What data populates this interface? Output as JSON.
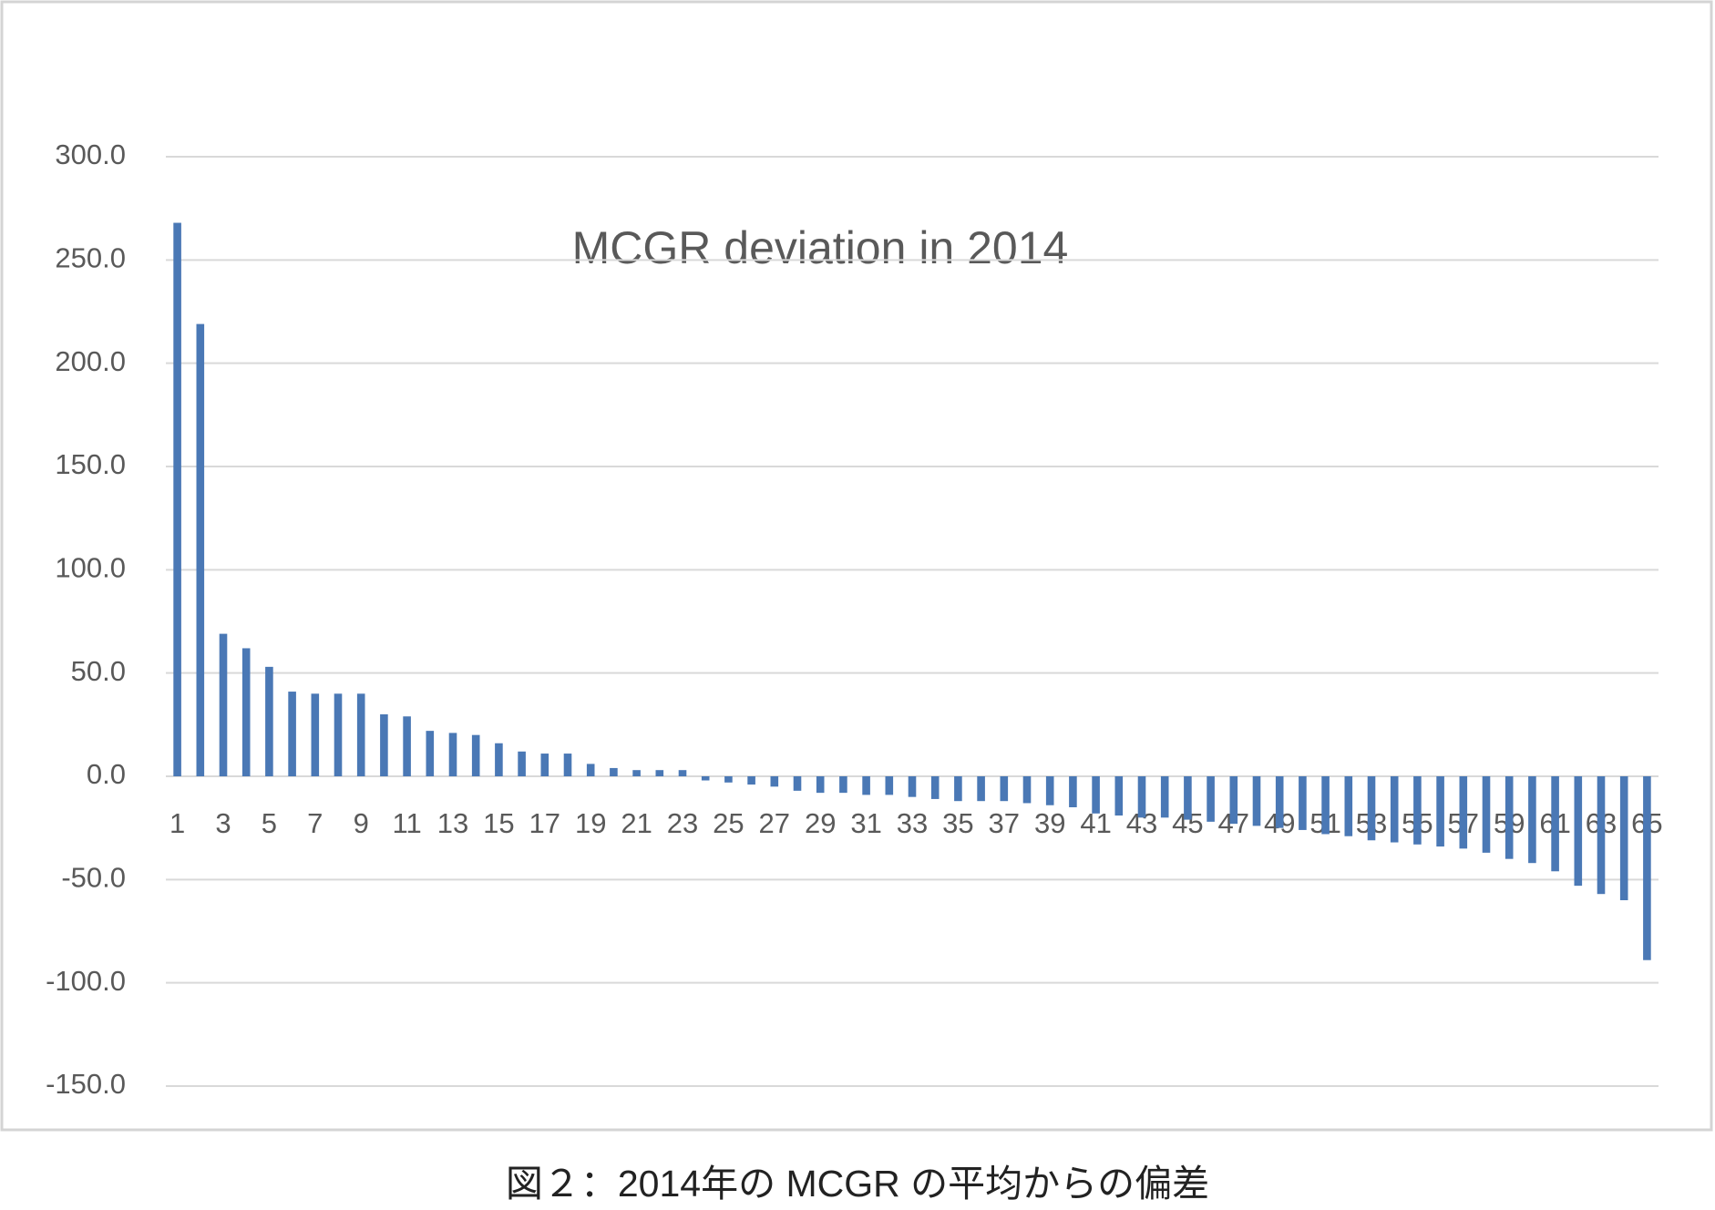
{
  "chart_data": {
    "type": "bar",
    "title": "MCGR deviation in 2014",
    "caption": "図２：2014年の MCGR の平均からの偏差",
    "categories": [
      "1",
      null,
      "3",
      null,
      "5",
      null,
      "7",
      null,
      "9",
      null,
      "11",
      null,
      "13",
      null,
      "15",
      null,
      "17",
      null,
      "19",
      null,
      "21",
      null,
      "23",
      null,
      "25",
      null,
      "27",
      null,
      "29",
      null,
      "31",
      null,
      "33",
      null,
      "35",
      null,
      "37",
      null,
      "39",
      null,
      "41",
      null,
      "43",
      null,
      "45",
      null,
      "47",
      null,
      "49",
      null,
      "51",
      null,
      "53",
      null,
      "55",
      null,
      "57",
      null,
      "59",
      null,
      "61",
      null,
      "63",
      null,
      "65"
    ],
    "values": [
      268,
      219,
      69,
      62,
      53,
      41,
      40,
      40,
      40,
      30,
      29,
      22,
      21,
      20,
      16,
      12,
      11,
      11,
      6,
      4,
      3,
      3,
      3,
      -2,
      -3,
      -4,
      -5,
      -7,
      -8,
      -8,
      -9,
      -9,
      -10,
      -11,
      -12,
      -12,
      -12,
      -13,
      -14,
      -15,
      -18,
      -19,
      -20,
      -20,
      -21,
      -22,
      -23,
      -24,
      -25,
      -26,
      -28,
      -29,
      -31,
      -32,
      -33,
      -34,
      -35,
      -37,
      -40,
      -42,
      -46,
      -53,
      -57,
      -60,
      -89
    ],
    "color": "#4a78b5",
    "ylim": [
      -150,
      300
    ],
    "yticks": [
      {
        "value": -150,
        "label": "-150.0"
      },
      {
        "value": -100,
        "label": "-100.0"
      },
      {
        "value": -50,
        "label": "-50.0"
      },
      {
        "value": 0,
        "label": "0.0"
      },
      {
        "value": 50,
        "label": "50.0"
      },
      {
        "value": 100,
        "label": "100.0"
      },
      {
        "value": 150,
        "label": "150.0"
      },
      {
        "value": 200,
        "label": "200.0"
      },
      {
        "value": 250,
        "label": "250.0"
      },
      {
        "value": 300,
        "label": "300.0"
      }
    ],
    "grid": true
  }
}
